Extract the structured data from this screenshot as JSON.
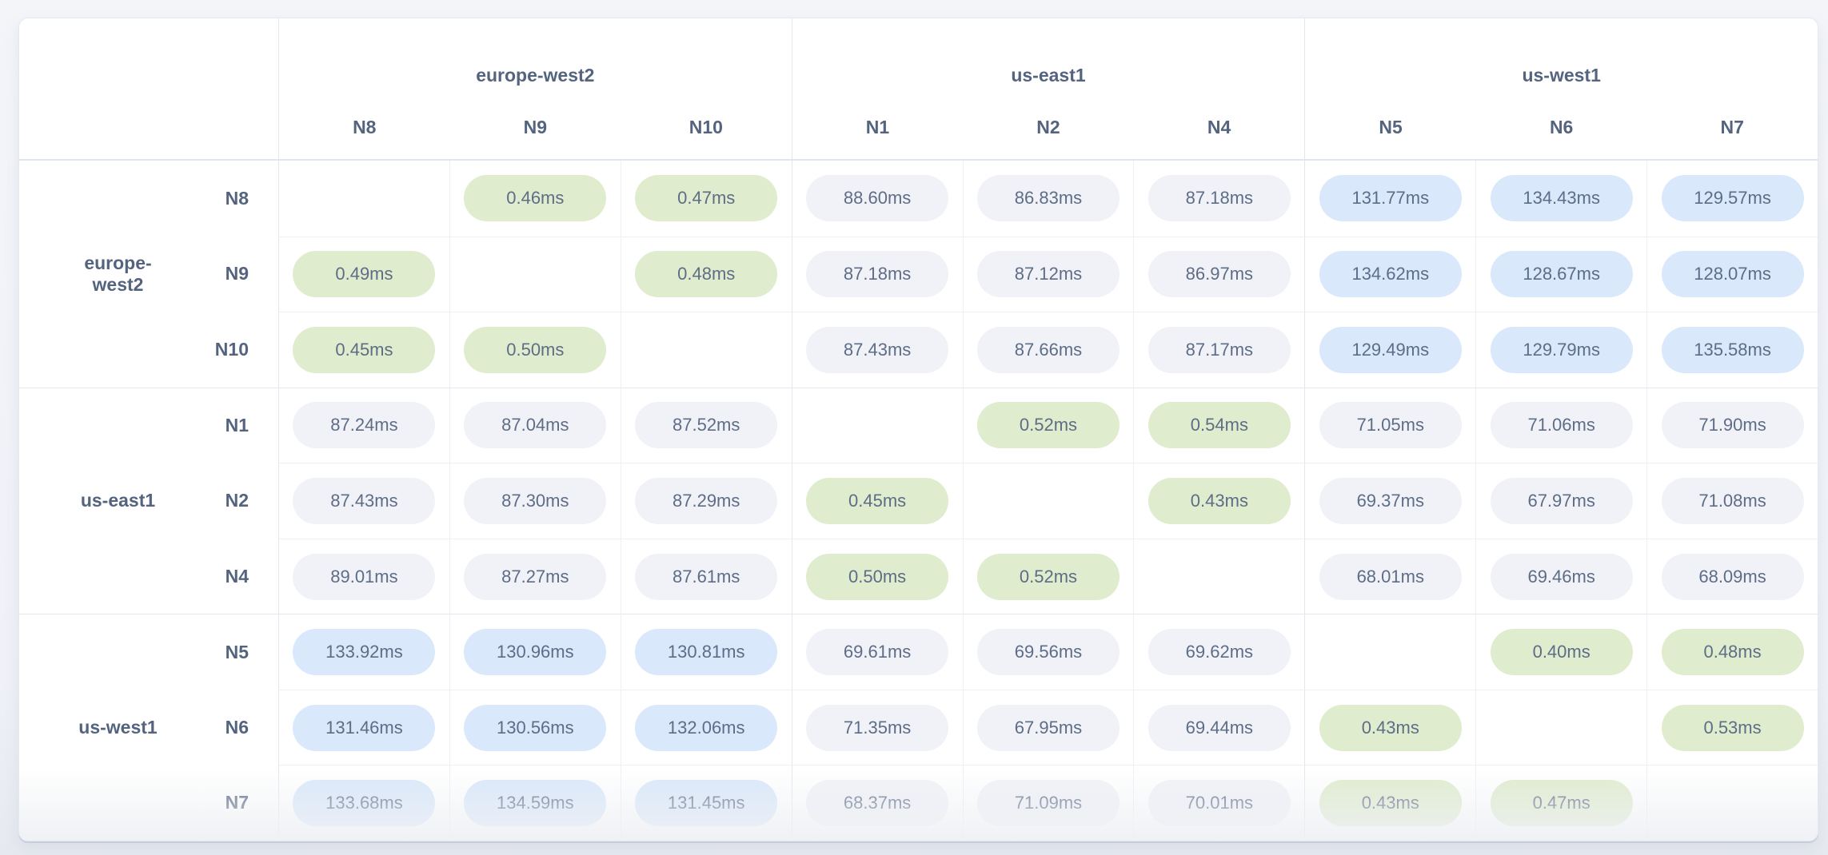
{
  "matrix": {
    "unit": "ms",
    "col_groups": [
      {
        "region": "europe-west2",
        "nodes": [
          "N8",
          "N9",
          "N10"
        ]
      },
      {
        "region": "us-east1",
        "nodes": [
          "N1",
          "N2",
          "N4"
        ]
      },
      {
        "region": "us-west1",
        "nodes": [
          "N5",
          "N6",
          "N7"
        ]
      }
    ],
    "row_groups": [
      {
        "region": "europe-west2",
        "rows": [
          {
            "node": "N8",
            "cells": [
              null,
              "0.46ms",
              "0.47ms",
              "88.60ms",
              "86.83ms",
              "87.18ms",
              "131.77ms",
              "134.43ms",
              "129.57ms"
            ]
          },
          {
            "node": "N9",
            "cells": [
              "0.49ms",
              null,
              "0.48ms",
              "87.18ms",
              "87.12ms",
              "86.97ms",
              "134.62ms",
              "128.67ms",
              "128.07ms"
            ]
          },
          {
            "node": "N10",
            "cells": [
              "0.45ms",
              "0.50ms",
              null,
              "87.43ms",
              "87.66ms",
              "87.17ms",
              "129.49ms",
              "129.79ms",
              "135.58ms"
            ]
          }
        ]
      },
      {
        "region": "us-east1",
        "rows": [
          {
            "node": "N1",
            "cells": [
              "87.24ms",
              "87.04ms",
              "87.52ms",
              null,
              "0.52ms",
              "0.54ms",
              "71.05ms",
              "71.06ms",
              "71.90ms"
            ]
          },
          {
            "node": "N2",
            "cells": [
              "87.43ms",
              "87.30ms",
              "87.29ms",
              "0.45ms",
              null,
              "0.43ms",
              "69.37ms",
              "67.97ms",
              "71.08ms"
            ]
          },
          {
            "node": "N4",
            "cells": [
              "89.01ms",
              "87.27ms",
              "87.61ms",
              "0.50ms",
              "0.52ms",
              null,
              "68.01ms",
              "69.46ms",
              "68.09ms"
            ]
          }
        ]
      },
      {
        "region": "us-west1",
        "rows": [
          {
            "node": "N5",
            "cells": [
              "133.92ms",
              "130.96ms",
              "130.81ms",
              "69.61ms",
              "69.56ms",
              "69.62ms",
              null,
              "0.40ms",
              "0.48ms"
            ]
          },
          {
            "node": "N6",
            "cells": [
              "131.46ms",
              "130.56ms",
              "132.06ms",
              "71.35ms",
              "67.95ms",
              "69.44ms",
              "0.43ms",
              null,
              "0.53ms"
            ]
          },
          {
            "node": "N7",
            "cells": [
              "133.68ms",
              "134.59ms",
              "131.45ms",
              "68.37ms",
              "71.09ms",
              "70.01ms",
              "0.43ms",
              "0.47ms",
              null
            ]
          }
        ]
      }
    ],
    "colors": {
      "pill_low_latency": "#dfeccd",
      "pill_mid_latency": "#f0f2f7",
      "pill_high_latency": "#d9e8fa",
      "label_text": "#54647e",
      "value_text": "#5e6d87"
    },
    "thresholds": {
      "low_below_ms": 1,
      "high_above_ms": 100
    }
  }
}
